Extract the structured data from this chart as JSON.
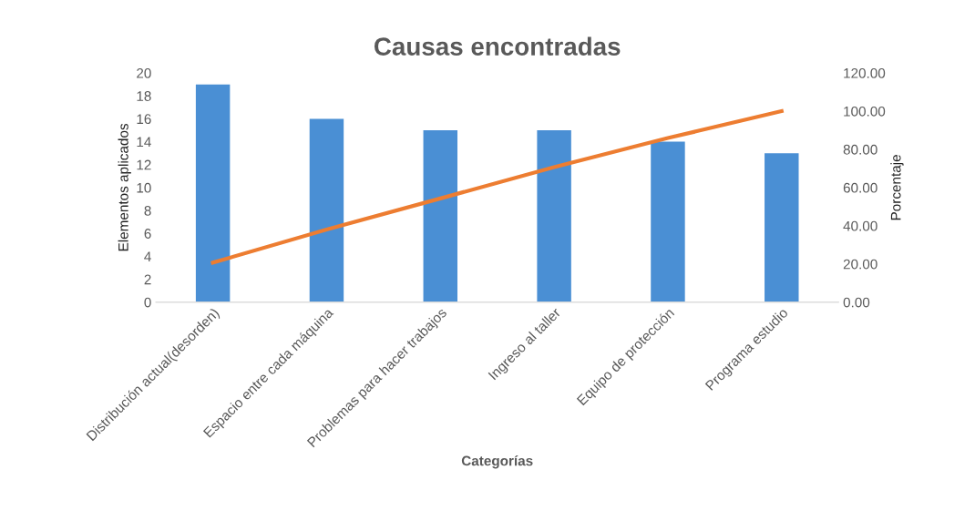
{
  "chart_data": {
    "type": "bar",
    "title": "Causas encontradas",
    "xlabel": "Categorías",
    "ylabel": "Elementos aplicados",
    "y2label": "Porcentaje",
    "categories": [
      "Distribución actual(desorden)",
      "Espacio entre cada máquina",
      "Problemas para hacer trabajos",
      "Ingreso al taller",
      "Equipo de protección",
      "Programa estudio"
    ],
    "series": [
      {
        "color": "#4a8fd4",
        "values": [
          19,
          16,
          15,
          15,
          14,
          13
        ]
      },
      {
        "type": "line",
        "axis": "y2",
        "color": "#ed7d31",
        "values": [
          20.7,
          38.0,
          54.3,
          70.7,
          85.9,
          100
        ]
      }
    ],
    "ylim": [
      0,
      20
    ],
    "yticks": [
      0,
      2,
      4,
      6,
      8,
      10,
      12,
      14,
      16,
      18,
      20
    ],
    "y2lim": [
      0,
      120
    ],
    "y2ticks": [
      {
        "value": 0,
        "label": "0.00"
      },
      {
        "value": 20,
        "label": "20.00"
      },
      {
        "value": 40,
        "label": "40.00"
      },
      {
        "value": 60,
        "label": "60.00"
      },
      {
        "value": 80,
        "label": "80.00"
      },
      {
        "value": 100,
        "label": "100.00"
      },
      {
        "value": 120,
        "label": "120.00"
      }
    ],
    "grid": false,
    "line_style": "solid",
    "marker": "none"
  }
}
